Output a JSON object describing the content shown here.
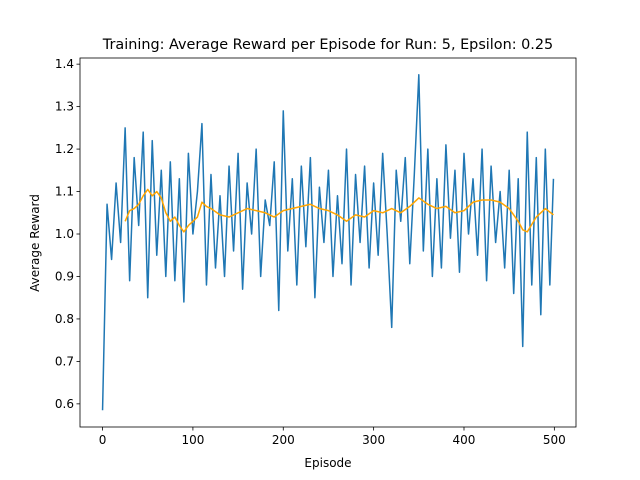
{
  "chart_data": {
    "type": "line",
    "title": "Training: Average Reward per Episode for Run: 5, Epsilon: 0.25",
    "xlabel": "Episode",
    "ylabel": "Average Reward",
    "xlim": [
      -24.95,
      523.95
    ],
    "ylim": [
      0.5455,
      1.4145
    ],
    "xticks": [
      0,
      100,
      200,
      300,
      400,
      500
    ],
    "yticks": [
      0.6,
      0.7,
      0.8,
      0.9,
      {
        "value": 1,
        "label": "1.0"
      },
      1.1,
      1.2,
      1.3,
      1.4
    ],
    "grid": false,
    "series": [
      {
        "color": "#1f77b4",
        "x": [
          0,
          5,
          10,
          15,
          20,
          25,
          30,
          35,
          40,
          45,
          50,
          55,
          60,
          65,
          70,
          75,
          80,
          85,
          90,
          95,
          100,
          105,
          110,
          115,
          120,
          125,
          130,
          135,
          140,
          145,
          150,
          155,
          160,
          165,
          170,
          175,
          180,
          185,
          190,
          195,
          200,
          205,
          210,
          215,
          220,
          225,
          230,
          235,
          240,
          245,
          250,
          255,
          260,
          265,
          270,
          275,
          280,
          285,
          290,
          295,
          300,
          305,
          310,
          315,
          320,
          325,
          330,
          335,
          340,
          345,
          350,
          355,
          360,
          365,
          370,
          375,
          380,
          385,
          390,
          395,
          400,
          405,
          410,
          415,
          420,
          425,
          430,
          435,
          440,
          445,
          450,
          455,
          460,
          465,
          470,
          475,
          480,
          485,
          490,
          495,
          499
        ],
        "values": [
          0.585,
          1.07,
          0.94,
          1.12,
          0.98,
          1.25,
          0.89,
          1.18,
          1.02,
          1.24,
          0.85,
          1.22,
          0.95,
          1.15,
          0.9,
          1.17,
          0.89,
          1.13,
          0.84,
          1.19,
          1.0,
          1.1,
          1.26,
          0.88,
          1.14,
          0.92,
          1.09,
          0.9,
          1.16,
          0.96,
          1.19,
          0.87,
          1.12,
          1.0,
          1.2,
          0.9,
          1.08,
          1.02,
          1.17,
          0.82,
          1.29,
          0.96,
          1.13,
          0.88,
          1.16,
          0.97,
          1.18,
          0.85,
          1.11,
          0.98,
          1.15,
          0.9,
          1.09,
          0.93,
          1.2,
          0.88,
          1.14,
          0.98,
          1.16,
          0.92,
          1.12,
          0.95,
          1.19,
          1.0,
          0.78,
          1.15,
          1.03,
          1.18,
          0.93,
          1.14,
          1.375,
          0.96,
          1.2,
          0.9,
          1.13,
          0.92,
          1.21,
          0.99,
          1.15,
          0.91,
          1.19,
          1.0,
          1.13,
          0.95,
          1.2,
          0.89,
          1.16,
          0.98,
          1.1,
          0.92,
          1.15,
          0.86,
          1.13,
          0.735,
          1.24,
          0.88,
          1.18,
          0.81,
          1.2,
          0.88,
          1.13
        ]
      },
      {
        "color": "#ffa500",
        "x": [
          25,
          30,
          35,
          40,
          45,
          50,
          55,
          60,
          65,
          70,
          75,
          80,
          85,
          90,
          95,
          100,
          105,
          110,
          115,
          120,
          130,
          140,
          150,
          160,
          170,
          180,
          190,
          200,
          210,
          220,
          230,
          240,
          250,
          260,
          270,
          280,
          290,
          300,
          310,
          320,
          330,
          340,
          350,
          360,
          370,
          380,
          390,
          400,
          410,
          420,
          430,
          440,
          450,
          460,
          465,
          470,
          480,
          490,
          499
        ],
        "values": [
          1.03,
          1.055,
          1.06,
          1.07,
          1.09,
          1.105,
          1.09,
          1.1,
          1.085,
          1.05,
          1.03,
          1.04,
          1.02,
          1.005,
          1.02,
          1.03,
          1.04,
          1.075,
          1.065,
          1.06,
          1.045,
          1.04,
          1.05,
          1.06,
          1.055,
          1.05,
          1.04,
          1.055,
          1.06,
          1.065,
          1.07,
          1.06,
          1.055,
          1.045,
          1.03,
          1.045,
          1.04,
          1.055,
          1.05,
          1.06,
          1.05,
          1.065,
          1.085,
          1.07,
          1.06,
          1.065,
          1.05,
          1.055,
          1.075,
          1.08,
          1.08,
          1.075,
          1.06,
          1.03,
          1.01,
          1.005,
          1.04,
          1.06,
          1.045
        ]
      }
    ]
  }
}
